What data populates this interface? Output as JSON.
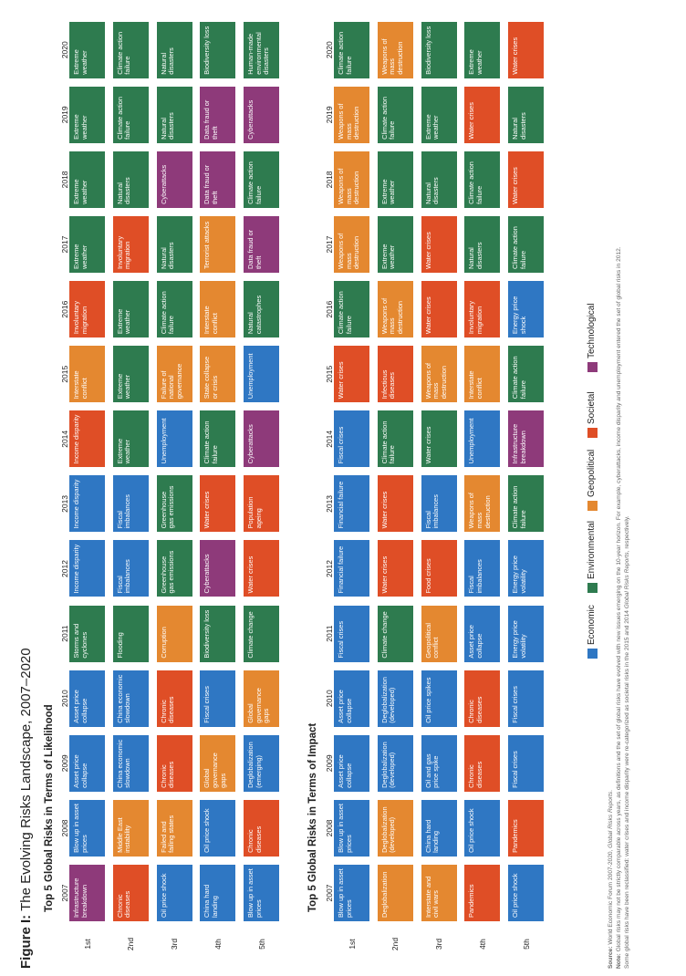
{
  "title_bold": "Figure I:",
  "title_rest": " The Evolving Risks Landscape, 2007–2020",
  "colors": {
    "economic": "#2f77c3",
    "environmental": "#2e7b4f",
    "geopolitical": "#e48830",
    "societal": "#df4e26",
    "technological": "#8e3a7a"
  },
  "years": [
    "2007",
    "2008",
    "2009",
    "2010",
    "2011",
    "2012",
    "2013",
    "2014",
    "2015",
    "2016",
    "2017",
    "2018",
    "2019",
    "2020"
  ],
  "ranks": [
    "1st",
    "2nd",
    "3rd",
    "4th",
    "5th"
  ],
  "likelihood": {
    "title": "Top 5 Global Risks in Terms of Likelihood",
    "rows": [
      [
        [
          "Infrastructure breakdown",
          "technological"
        ],
        [
          "Blow up in asset prices",
          "economic"
        ],
        [
          "Asset price collapse",
          "economic"
        ],
        [
          "Asset price collapse",
          "economic"
        ],
        [
          "Storms and cyclones",
          "environmental"
        ],
        [
          "Income disparity",
          "economic"
        ],
        [
          "Income disparity",
          "economic"
        ],
        [
          "Income disparity",
          "societal"
        ],
        [
          "Interstate conflict",
          "geopolitical"
        ],
        [
          "Involuntary migration",
          "societal"
        ],
        [
          "Extreme weather",
          "environmental"
        ],
        [
          "Extreme weather",
          "environmental"
        ],
        [
          "Extreme weather",
          "environmental"
        ],
        [
          "Extreme weather",
          "environmental"
        ]
      ],
      [
        [
          "Chronic diseases",
          "societal"
        ],
        [
          "Middle East instability",
          "geopolitical"
        ],
        [
          "China economic slowdown",
          "economic"
        ],
        [
          "China economic slowdown",
          "economic"
        ],
        [
          "Flooding",
          "environmental"
        ],
        [
          "Fiscal imbalances",
          "economic"
        ],
        [
          "Fiscal imbalances",
          "economic"
        ],
        [
          "Extreme weather",
          "environmental"
        ],
        [
          "Extreme weather",
          "environmental"
        ],
        [
          "Extreme weather",
          "environmental"
        ],
        [
          "Involuntary migration",
          "societal"
        ],
        [
          "Natural disasters",
          "environmental"
        ],
        [
          "Climate action failure",
          "environmental"
        ],
        [
          "Climate action failure",
          "environmental"
        ]
      ],
      [
        [
          "Oil price shock",
          "economic"
        ],
        [
          "Failed and failing states",
          "geopolitical"
        ],
        [
          "Chronic diseases",
          "societal"
        ],
        [
          "Chronic diseases",
          "societal"
        ],
        [
          "Corruption",
          "geopolitical"
        ],
        [
          "Greenhouse gas emissions",
          "environmental"
        ],
        [
          "Greenhouse gas emissions",
          "environmental"
        ],
        [
          "Unemployment",
          "economic"
        ],
        [
          "Failure of national governance",
          "geopolitical"
        ],
        [
          "Climate action failure",
          "environmental"
        ],
        [
          "Natural disasters",
          "environmental"
        ],
        [
          "Cyberattacks",
          "technological"
        ],
        [
          "Natural disasters",
          "environmental"
        ],
        [
          "Natural disasters",
          "environmental"
        ]
      ],
      [
        [
          "China hard landing",
          "economic"
        ],
        [
          "Oil price shock",
          "economic"
        ],
        [
          "Global governance gaps",
          "geopolitical"
        ],
        [
          "Fiscal crises",
          "economic"
        ],
        [
          "Biodiversity loss",
          "environmental"
        ],
        [
          "Cyberattacks",
          "technological"
        ],
        [
          "Water crises",
          "societal"
        ],
        [
          "Climate action failure",
          "environmental"
        ],
        [
          "State collapse or crisis",
          "geopolitical"
        ],
        [
          "Interstate conflict",
          "geopolitical"
        ],
        [
          "Terrorist attacks",
          "geopolitical"
        ],
        [
          "Data fraud or theft",
          "technological"
        ],
        [
          "Data fraud or theft",
          "technological"
        ],
        [
          "Biodiversity loss",
          "environmental"
        ]
      ],
      [
        [
          "Blow up in asset prices",
          "economic"
        ],
        [
          "Chronic diseases",
          "societal"
        ],
        [
          "Deglobalization (emerging)",
          "economic"
        ],
        [
          "Global governance gaps",
          "geopolitical"
        ],
        [
          "Climate change",
          "environmental"
        ],
        [
          "Water crises",
          "societal"
        ],
        [
          "Population ageing",
          "societal"
        ],
        [
          "Cyberattacks",
          "technological"
        ],
        [
          "Unemployment",
          "economic"
        ],
        [
          "Natural catastrophes",
          "environmental"
        ],
        [
          "Data fraud or theft",
          "technological"
        ],
        [
          "Climate action failure",
          "environmental"
        ],
        [
          "Cyberattacks",
          "technological"
        ],
        [
          "Human-made environmental disasters",
          "environmental"
        ]
      ]
    ]
  },
  "impact": {
    "title": "Top 5 Global Risks in Terms of Impact",
    "rows": [
      [
        [
          "Blow up in asset prices",
          "economic"
        ],
        [
          "Blow up in asset prices",
          "economic"
        ],
        [
          "Asset price collapse",
          "economic"
        ],
        [
          "Asset price collapse",
          "economic"
        ],
        [
          "Fiscal crises",
          "economic"
        ],
        [
          "Financial failure",
          "economic"
        ],
        [
          "Financial failure",
          "economic"
        ],
        [
          "Fiscal crises",
          "economic"
        ],
        [
          "Water crises",
          "societal"
        ],
        [
          "Climate action failure",
          "environmental"
        ],
        [
          "Weapons of mass destruction",
          "geopolitical"
        ],
        [
          "Weapons of mass destruction",
          "geopolitical"
        ],
        [
          "Weapons of mass destruction",
          "geopolitical"
        ],
        [
          "Climate action failure",
          "environmental"
        ]
      ],
      [
        [
          "Deglobalization",
          "geopolitical"
        ],
        [
          "Deglobalization (developed)",
          "geopolitical"
        ],
        [
          "Deglobalization (developed)",
          "economic"
        ],
        [
          "Deglobalization (developed)",
          "economic"
        ],
        [
          "Climate change",
          "environmental"
        ],
        [
          "Water crises",
          "societal"
        ],
        [
          "Water crises",
          "societal"
        ],
        [
          "Climate action failure",
          "environmental"
        ],
        [
          "Infectious diseases",
          "societal"
        ],
        [
          "Weapons of mass destruction",
          "geopolitical"
        ],
        [
          "Extreme weather",
          "environmental"
        ],
        [
          "Extreme weather",
          "environmental"
        ],
        [
          "Climate action failure",
          "environmental"
        ],
        [
          "Weapons of mass destruction",
          "geopolitical"
        ]
      ],
      [
        [
          "Interstate and civil wars",
          "geopolitical"
        ],
        [
          "China hard landing",
          "economic"
        ],
        [
          "Oil and gas price spike",
          "economic"
        ],
        [
          "Oil price spikes",
          "economic"
        ],
        [
          "Geopolitical conflict",
          "geopolitical"
        ],
        [
          "Food crises",
          "societal"
        ],
        [
          "Fiscal imbalances",
          "economic"
        ],
        [
          "Water crises",
          "environmental"
        ],
        [
          "Weapons of mass destruction",
          "geopolitical"
        ],
        [
          "Water crises",
          "societal"
        ],
        [
          "Water crises",
          "societal"
        ],
        [
          "Natural disasters",
          "environmental"
        ],
        [
          "Extreme weather",
          "environmental"
        ],
        [
          "Biodiversity loss",
          "environmental"
        ]
      ],
      [
        [
          "Pandemics",
          "societal"
        ],
        [
          "Oil price shock",
          "economic"
        ],
        [
          "Chronic diseases",
          "societal"
        ],
        [
          "Chronic diseases",
          "societal"
        ],
        [
          "Asset price collapse",
          "economic"
        ],
        [
          "Fiscal imbalances",
          "economic"
        ],
        [
          "Weapons of mass destruction",
          "geopolitical"
        ],
        [
          "Unemployment",
          "economic"
        ],
        [
          "Interstate conflict",
          "geopolitical"
        ],
        [
          "Involuntary migration",
          "societal"
        ],
        [
          "Natural disasters",
          "environmental"
        ],
        [
          "Climate action failure",
          "environmental"
        ],
        [
          "Water crises",
          "societal"
        ],
        [
          "Extreme weather",
          "environmental"
        ]
      ],
      [
        [
          "Oil price shock",
          "economic"
        ],
        [
          "Pandemics",
          "societal"
        ],
        [
          "Fiscal crises",
          "economic"
        ],
        [
          "Fiscal crises",
          "economic"
        ],
        [
          "Energy price volatility",
          "economic"
        ],
        [
          "Energy price volatility",
          "economic"
        ],
        [
          "Climate action failure",
          "environmental"
        ],
        [
          "Infrastructure breakdown",
          "technological"
        ],
        [
          "Climate action failure",
          "environmental"
        ],
        [
          "Energy price shock",
          "economic"
        ],
        [
          "Climate action failure",
          "environmental"
        ],
        [
          "Water crises",
          "societal"
        ],
        [
          "Natural disasters",
          "environmental"
        ],
        [
          "Water crises",
          "societal"
        ]
      ]
    ]
  },
  "legend": [
    {
      "label": "Economic",
      "key": "economic"
    },
    {
      "label": "Environmental",
      "key": "environmental"
    },
    {
      "label": "Geopolitical",
      "key": "geopolitical"
    },
    {
      "label": "Societal",
      "key": "societal"
    },
    {
      "label": "Technological",
      "key": "technological"
    }
  ],
  "source": {
    "label": "Source:",
    "text": " World Economic Forum 2007-2020, ",
    "italic": "Global Risks Reports",
    "tail": "."
  },
  "note1": {
    "label": "Note:",
    "text": " Global risks may not be strictly comparable across years, as definitions and the set of global risks have evolved with new issues emerging on the 10-year horizon. For example, cyberattacks, income disparity and unemployment entered the set of global risks in 2012."
  },
  "note2": {
    "text": "Some global risks have been reclassified: water crises and income disparity were re-categorized as societal risks in the 2015 and 2014 ",
    "italic": "Global Risks Reports",
    "tail": ", respectively."
  }
}
